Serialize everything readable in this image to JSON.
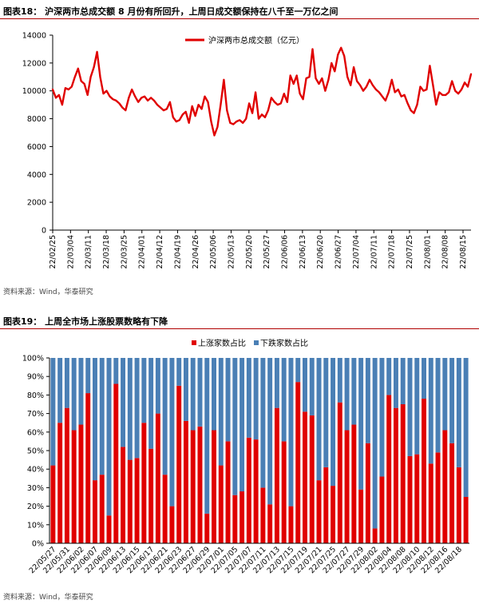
{
  "figures": [
    {
      "title": "图表18： 沪深两市总成交额 8 月份有所回升，上周日成交额保持在八千至一万亿之间",
      "source": "资料来源：Wind，华泰研究"
    },
    {
      "title": "图表19： 上周全市场上涨股票数略有下降",
      "source": "资料来源：Wind，华泰研究"
    }
  ],
  "chart_data": [
    {
      "type": "line",
      "title": "",
      "xlabel": "",
      "ylabel": "",
      "ylim": [
        0,
        14000
      ],
      "yticks": [
        "0",
        "2000",
        "4000",
        "6000",
        "8000",
        "10000",
        "12000",
        "14000"
      ],
      "xticks": [
        "22/02/25",
        "22/03/04",
        "22/03/11",
        "22/03/18",
        "22/03/25",
        "22/04/01",
        "22/04/12",
        "22/04/19",
        "22/04/26",
        "22/05/06",
        "22/05/13",
        "22/05/20",
        "22/05/27",
        "22/06/06",
        "22/06/13",
        "22/06/20",
        "22/06/27",
        "22/07/04",
        "22/07/11",
        "22/07/18",
        "22/07/25",
        "22/08/01",
        "22/08/08",
        "22/08/15"
      ],
      "legend": {
        "position": "top",
        "labels": [
          "沪深两市总成交额（亿元）"
        ]
      },
      "color": "#e00000",
      "series": [
        {
          "name": "沪深两市总成交额（亿元）",
          "values": [
            10100,
            9500,
            9700,
            9000,
            10200,
            10100,
            10300,
            11000,
            11600,
            10700,
            10500,
            9700,
            11000,
            11700,
            12800,
            11000,
            9800,
            10000,
            9600,
            9400,
            9300,
            9100,
            8800,
            8600,
            9500,
            10100,
            9600,
            9200,
            9500,
            9600,
            9300,
            9500,
            9300,
            9000,
            8800,
            8600,
            8700,
            9200,
            8100,
            7800,
            7900,
            8300,
            8500,
            7700,
            8900,
            8200,
            9000,
            8700,
            9600,
            9200,
            7800,
            6800,
            7400,
            9000,
            10800,
            8600,
            7700,
            7600,
            7800,
            7900,
            7700,
            8000,
            9100,
            8400,
            9900,
            8000,
            8300,
            8100,
            8600,
            9500,
            9200,
            9000,
            9100,
            9800,
            9200,
            11100,
            10500,
            11100,
            9800,
            9400,
            10900,
            11000,
            13000,
            10900,
            10500,
            10900,
            10000,
            10800,
            12000,
            11400,
            12600,
            13100,
            12500,
            11000,
            10400,
            11700,
            10700,
            10400,
            10000,
            10300,
            10800,
            10400,
            10100,
            9900,
            9600,
            9300,
            9900,
            10800,
            9900,
            10100,
            9600,
            9700,
            9100,
            8600,
            8400,
            9000,
            10300,
            10000,
            10100,
            11800,
            10400,
            9000,
            9900,
            9700,
            9700,
            9900,
            10700,
            10000,
            9800,
            10100,
            10600,
            10300,
            11200
          ]
        }
      ]
    },
    {
      "type": "bar",
      "stacked": true,
      "title": "",
      "xlabel": "",
      "ylabel": "",
      "ylim": [
        0,
        100
      ],
      "yticks": [
        "0%",
        "10%",
        "20%",
        "30%",
        "40%",
        "50%",
        "60%",
        "70%",
        "80%",
        "90%",
        "100%"
      ],
      "xticks": [
        "22/05/27",
        "22/05/31",
        "22/06/02",
        "22/06/07",
        "22/06/09",
        "22/06/13",
        "22/06/15",
        "22/06/17",
        "22/06/21",
        "22/06/23",
        "22/06/27",
        "22/06/29",
        "22/07/01",
        "22/07/05",
        "22/07/07",
        "22/07/11",
        "22/07/13",
        "22/07/15",
        "22/07/19",
        "22/07/21",
        "22/07/25",
        "22/07/27",
        "22/07/29",
        "22/08/02",
        "22/08/04",
        "22/08/08",
        "22/08/10",
        "22/08/12",
        "22/08/16",
        "22/08/18"
      ],
      "legend": {
        "position": "top",
        "labels": [
          "上涨家数占比",
          "下跌家数占比"
        ]
      },
      "colors": [
        "#e00000",
        "#4a7fb5"
      ],
      "series": [
        {
          "name": "上涨家数占比",
          "values": [
            42,
            65,
            73,
            61,
            64,
            81,
            34,
            37,
            15,
            86,
            52,
            45,
            46,
            65,
            51,
            70,
            37,
            20,
            85,
            66,
            61,
            63,
            16,
            61,
            42,
            55,
            26,
            28,
            57,
            56,
            30,
            21,
            73,
            55,
            20,
            87,
            71,
            69,
            34,
            41,
            31,
            76,
            61,
            64,
            29,
            54,
            8,
            36,
            80,
            73,
            75,
            47,
            48,
            78,
            43,
            49,
            61,
            54,
            41,
            25
          ]
        },
        {
          "name": "下跌家数占比",
          "values": [
            58,
            35,
            27,
            39,
            36,
            19,
            66,
            63,
            85,
            14,
            48,
            55,
            54,
            35,
            49,
            30,
            63,
            80,
            15,
            34,
            39,
            37,
            84,
            39,
            58,
            45,
            74,
            72,
            43,
            44,
            70,
            79,
            27,
            45,
            80,
            13,
            29,
            31,
            66,
            59,
            69,
            24,
            39,
            36,
            71,
            46,
            92,
            64,
            20,
            27,
            25,
            53,
            52,
            22,
            57,
            51,
            39,
            46,
            59,
            75
          ]
        }
      ]
    }
  ]
}
